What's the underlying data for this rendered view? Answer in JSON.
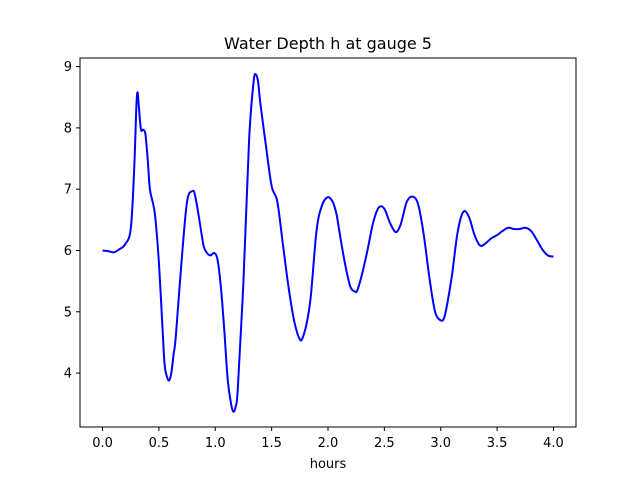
{
  "chart_data": {
    "type": "line",
    "title": "Water Depth h at gauge 5",
    "xlabel": "hours",
    "ylabel": "",
    "xlim": [
      -0.2,
      4.2
    ],
    "ylim": [
      3.12,
      9.14
    ],
    "xticks": [
      "0.0",
      "0.5",
      "1.0",
      "1.5",
      "2.0",
      "2.5",
      "3.0",
      "3.5",
      "4.0"
    ],
    "yticks": [
      "4",
      "5",
      "6",
      "7",
      "8",
      "9"
    ],
    "grid": false,
    "line_color": "#0000ff",
    "series": [
      {
        "x": [
          0.0,
          0.05,
          0.1,
          0.15,
          0.2,
          0.25,
          0.28,
          0.3,
          0.31,
          0.32,
          0.34,
          0.36,
          0.38,
          0.4,
          0.42,
          0.45,
          0.47,
          0.5,
          0.53,
          0.55,
          0.57,
          0.59,
          0.61,
          0.63,
          0.65,
          0.7,
          0.75,
          0.8,
          0.82,
          0.85,
          0.88,
          0.9,
          0.93,
          0.96,
          0.99,
          1.02,
          1.05,
          1.08,
          1.11,
          1.14,
          1.16,
          1.18,
          1.2,
          1.25,
          1.3,
          1.34,
          1.36,
          1.38,
          1.4,
          1.45,
          1.5,
          1.55,
          1.6,
          1.65,
          1.7,
          1.75,
          1.78,
          1.82,
          1.85,
          1.9,
          1.95,
          2.0,
          2.04,
          2.06,
          2.08,
          2.12,
          2.16,
          2.2,
          2.24,
          2.26,
          2.3,
          2.35,
          2.4,
          2.45,
          2.5,
          2.55,
          2.6,
          2.64,
          2.67,
          2.7,
          2.75,
          2.8,
          2.85,
          2.9,
          2.95,
          3.0,
          3.03,
          3.06,
          3.1,
          3.15,
          3.2,
          3.25,
          3.3,
          3.35,
          3.4,
          3.45,
          3.5,
          3.55,
          3.6,
          3.65,
          3.7,
          3.75,
          3.8,
          3.85,
          3.9,
          3.95,
          4.0
        ],
        "y": [
          6.0,
          5.99,
          5.97,
          6.02,
          6.1,
          6.35,
          7.3,
          8.35,
          8.58,
          8.4,
          7.98,
          7.97,
          7.9,
          7.5,
          7.0,
          6.75,
          6.5,
          5.8,
          4.8,
          4.15,
          3.95,
          3.88,
          4.0,
          4.3,
          4.6,
          5.8,
          6.8,
          6.97,
          6.9,
          6.6,
          6.25,
          6.05,
          5.95,
          5.92,
          5.96,
          5.85,
          5.4,
          4.7,
          3.9,
          3.5,
          3.37,
          3.45,
          3.75,
          5.5,
          7.8,
          8.75,
          8.87,
          8.75,
          8.4,
          7.7,
          7.05,
          6.8,
          6.1,
          5.4,
          4.85,
          4.55,
          4.6,
          4.9,
          5.3,
          6.35,
          6.75,
          6.87,
          6.8,
          6.7,
          6.55,
          6.1,
          5.7,
          5.4,
          5.33,
          5.35,
          5.6,
          6.0,
          6.45,
          6.7,
          6.68,
          6.45,
          6.3,
          6.4,
          6.6,
          6.8,
          6.88,
          6.75,
          6.25,
          5.55,
          5.0,
          4.86,
          4.9,
          5.15,
          5.6,
          6.3,
          6.63,
          6.55,
          6.25,
          6.08,
          6.12,
          6.2,
          6.25,
          6.32,
          6.37,
          6.35,
          6.35,
          6.37,
          6.32,
          6.18,
          6.02,
          5.92,
          5.9
        ]
      }
    ]
  }
}
